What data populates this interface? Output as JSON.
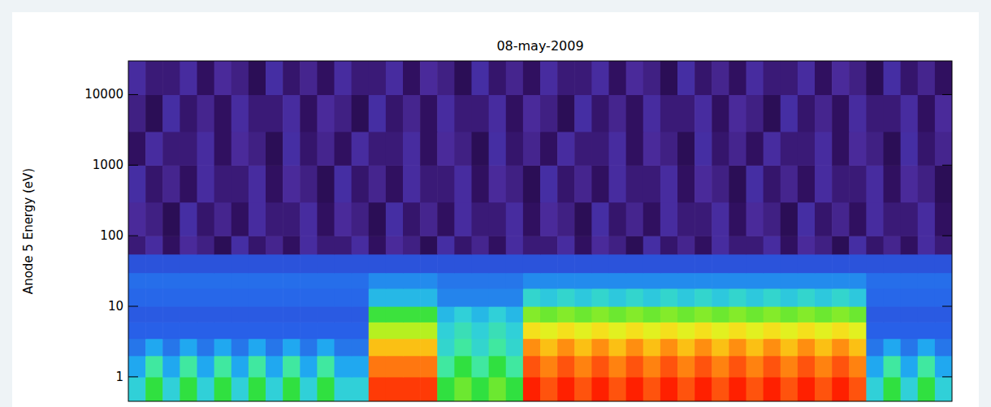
{
  "chart_data": {
    "type": "heatmap",
    "title": "08-may-2009",
    "y_label": "Anode 5 Energy (eV)",
    "log": "y",
    "ylim": [
      0.45,
      30000
    ],
    "yticks": [
      1,
      10,
      100,
      1000,
      10000
    ],
    "tick_labels": "y",
    "energy_bins": [
      0.45,
      1,
      2,
      3.5,
      6,
      10,
      18,
      30,
      55,
      100,
      300,
      1000,
      3000,
      10000,
      30000
    ],
    "color_range": [
      0,
      10
    ],
    "cells": [
      [
        4.5,
        5.5,
        4.5,
        5.5,
        4.5,
        5.5,
        4.5,
        5.5,
        4.5,
        5.5,
        4.5,
        5.5,
        4.5,
        4.5,
        8.8,
        8.8,
        8.8,
        8.8,
        5.5,
        6,
        5.5,
        6,
        5.5,
        9,
        8.6,
        9,
        8.6,
        9,
        8.6,
        9,
        8.6,
        9,
        8.6,
        9,
        8.6,
        9,
        8.6,
        9,
        8.6,
        9,
        8.6,
        9,
        8.6,
        4.5,
        5.5,
        4.5,
        5.5,
        4.5
      ],
      [
        4,
        5,
        4,
        5,
        4,
        5,
        4,
        5,
        4,
        5,
        4,
        5,
        4,
        4,
        8.3,
        8.3,
        8.3,
        8.3,
        5,
        5.5,
        5,
        5.5,
        5,
        8.6,
        8.2,
        8.6,
        8.2,
        8.6,
        8.2,
        8.6,
        8.2,
        8.6,
        8.2,
        8.6,
        8.2,
        8.6,
        8.2,
        8.6,
        8.2,
        8.6,
        8.2,
        8.6,
        8.2,
        4,
        5,
        4,
        5,
        4
      ],
      [
        3.3,
        4,
        3.3,
        4,
        3.3,
        4,
        3.3,
        4,
        3.3,
        4,
        3.3,
        4,
        3.3,
        3.3,
        7.6,
        7.6,
        7.6,
        7.6,
        4.6,
        5,
        4.6,
        5,
        4.6,
        8.1,
        7.6,
        8.1,
        7.6,
        8.1,
        7.6,
        8.1,
        7.6,
        8.1,
        7.6,
        8.1,
        7.6,
        8.1,
        7.6,
        8.1,
        7.6,
        8.1,
        7.6,
        8.1,
        7.6,
        3.3,
        4,
        3.3,
        4,
        3.3
      ],
      [
        3,
        3,
        3,
        3,
        3,
        3,
        3,
        3,
        3,
        3,
        3,
        3,
        3,
        3,
        6.6,
        6.6,
        6.6,
        6.6,
        4.5,
        4.8,
        4.5,
        4.8,
        4.5,
        7.2,
        6.9,
        7.2,
        6.9,
        7.2,
        6.9,
        7.2,
        6.9,
        7.2,
        6.9,
        7.2,
        6.9,
        7.2,
        6.9,
        7.2,
        6.9,
        7.2,
        6.9,
        7.2,
        6.9,
        3,
        3,
        3,
        3,
        3
      ],
      [
        2.9,
        2.9,
        2.9,
        2.9,
        2.9,
        2.9,
        2.9,
        2.9,
        2.9,
        2.9,
        2.9,
        2.9,
        2.9,
        2.9,
        5.6,
        5.6,
        5.6,
        5.6,
        4.2,
        4.5,
        4.2,
        4.5,
        4.2,
        6.2,
        6,
        6.2,
        6,
        6.2,
        6,
        6.2,
        6,
        6.2,
        6,
        6.2,
        6,
        6.2,
        6,
        6.2,
        6,
        6.2,
        6,
        6.2,
        6,
        2.9,
        2.9,
        2.9,
        2.9,
        2.9
      ],
      [
        3.1,
        3.1,
        3.1,
        3.1,
        3.1,
        3.1,
        3.1,
        3.1,
        3.1,
        3.1,
        3.1,
        3.1,
        3.1,
        3.1,
        4.2,
        4.2,
        4.2,
        4.2,
        3.5,
        3.5,
        3.5,
        3.5,
        3.5,
        4.6,
        4.4,
        4.6,
        4.4,
        4.6,
        4.4,
        4.6,
        4.4,
        4.6,
        4.4,
        4.6,
        4.4,
        4.6,
        4.4,
        4.6,
        4.4,
        4.6,
        4.4,
        4.6,
        4.4,
        3.1,
        3.1,
        3.1,
        3.1,
        3.1
      ],
      [
        3.2,
        3.2,
        3.2,
        3.2,
        3.2,
        3.2,
        3.2,
        3.2,
        3.2,
        3.2,
        3.2,
        3.2,
        3.2,
        3.2,
        3.6,
        3.6,
        3.6,
        3.6,
        3.3,
        3.3,
        3.3,
        3.3,
        3.3,
        3.6,
        3.6,
        3.6,
        3.6,
        3.6,
        3.6,
        3.6,
        3.6,
        3.6,
        3.6,
        3.6,
        3.6,
        3.6,
        3.6,
        3.6,
        3.6,
        3.6,
        3.6,
        3.6,
        3.6,
        3.2,
        3.2,
        3.2,
        3.2,
        3.2
      ],
      [
        2.8,
        2.8,
        2.8,
        2.8,
        2.8,
        2.8,
        2.8,
        2.8,
        2.8,
        2.8,
        2.8,
        2.8,
        2.8,
        2.8,
        2.8,
        2.8,
        2.8,
        2.8,
        2.8,
        2.8,
        2.8,
        2.8,
        2.8,
        2.8,
        2.8,
        2.8,
        2.8,
        2.8,
        2.8,
        2.8,
        2.8,
        2.8,
        2.8,
        2.8,
        2.8,
        2.8,
        2.8,
        2.8,
        2.8,
        2.8,
        2.8,
        2.8,
        2.8,
        2.8,
        2.8,
        2.8,
        2.8,
        2.8
      ],
      [
        1.2,
        1.6,
        1.0,
        1.5,
        1.3,
        0.9,
        1.7,
        1.1,
        1.4,
        1.0,
        1.6,
        1.2,
        1.2,
        1.6,
        1.0,
        1.5,
        1.3,
        0.9,
        1.7,
        1.1,
        1.4,
        1.0,
        1.6,
        1.2,
        1.2,
        1.6,
        1.0,
        1.5,
        1.3,
        0.9,
        1.7,
        1.1,
        1.4,
        1.0,
        1.6,
        1.2,
        1.2,
        1.6,
        1.0,
        1.5,
        1.3,
        0.9,
        1.7,
        1.1,
        1.4,
        1.0,
        1.6,
        1.2
      ],
      [
        1.5,
        1.3,
        0.9,
        1.7,
        1.1,
        1.4,
        1.0,
        1.6,
        1.2,
        1.2,
        1.6,
        1.0,
        1.5,
        1.3,
        0.9,
        1.7,
        1.1,
        1.4,
        1.0,
        1.6,
        1.2,
        1.2,
        1.6,
        1.0,
        1.5,
        1.3,
        0.9,
        1.7,
        1.1,
        1.4,
        1.0,
        1.6,
        1.2,
        1.2,
        1.6,
        1.0,
        1.5,
        1.3,
        0.9,
        1.7,
        1.1,
        1.4,
        1.0,
        1.6,
        1.2,
        1.2,
        1.6,
        1.0
      ],
      [
        1.7,
        1.1,
        1.4,
        1.0,
        1.6,
        1.2,
        1.2,
        1.6,
        1.0,
        1.5,
        1.3,
        0.9,
        1.7,
        1.1,
        1.4,
        1.0,
        1.6,
        1.2,
        1.2,
        1.6,
        1.0,
        1.5,
        1.3,
        0.9,
        1.7,
        1.1,
        1.4,
        1.0,
        1.6,
        1.2,
        1.2,
        1.6,
        1.0,
        1.5,
        1.3,
        0.9,
        1.7,
        1.1,
        1.4,
        1.0,
        1.6,
        1.2,
        1.2,
        1.6,
        1.0,
        1.5,
        1.3,
        0.9
      ],
      [
        1.0,
        1.6,
        1.2,
        1.2,
        1.6,
        1.0,
        1.5,
        1.3,
        0.9,
        1.7,
        1.1,
        1.4,
        1.0,
        1.6,
        1.2,
        1.2,
        1.6,
        1.0,
        1.5,
        1.3,
        0.9,
        1.7,
        1.1,
        1.4,
        1.0,
        1.6,
        1.2,
        1.2,
        1.6,
        1.0,
        1.5,
        1.3,
        0.9,
        1.7,
        1.1,
        1.4,
        1.0,
        1.6,
        1.2,
        1.2,
        1.6,
        1.0,
        1.5,
        1.3,
        0.9,
        1.7,
        1.1,
        1.4
      ],
      [
        1.3,
        0.9,
        1.7,
        1.1,
        1.4,
        1.0,
        1.6,
        1.2,
        1.2,
        1.6,
        1.0,
        1.5,
        1.3,
        0.9,
        1.7,
        1.1,
        1.4,
        1.0,
        1.6,
        1.2,
        1.2,
        1.6,
        1.0,
        1.5,
        1.3,
        0.9,
        1.7,
        1.1,
        1.4,
        1.0,
        1.6,
        1.2,
        1.2,
        1.6,
        1.0,
        1.5,
        1.3,
        0.9,
        1.7,
        1.1,
        1.4,
        1.0,
        1.6,
        1.2,
        1.2,
        1.6,
        1.0,
        1.5
      ],
      [
        1.6,
        1.2,
        1.2,
        1.6,
        1.0,
        1.5,
        1.3,
        0.9,
        1.7,
        1.1,
        1.4,
        1.0,
        1.6,
        1.2,
        1.2,
        1.6,
        1.0,
        1.5,
        1.3,
        0.9,
        1.7,
        1.1,
        1.4,
        1.0,
        1.6,
        1.2,
        1.2,
        1.6,
        1.0,
        1.5,
        1.3,
        0.9,
        1.7,
        1.1,
        1.4,
        1.0,
        1.6,
        1.2,
        1.2,
        1.6,
        1.0,
        1.5,
        1.3,
        0.9,
        1.7,
        1.1,
        1.4,
        1.0
      ]
    ]
  }
}
